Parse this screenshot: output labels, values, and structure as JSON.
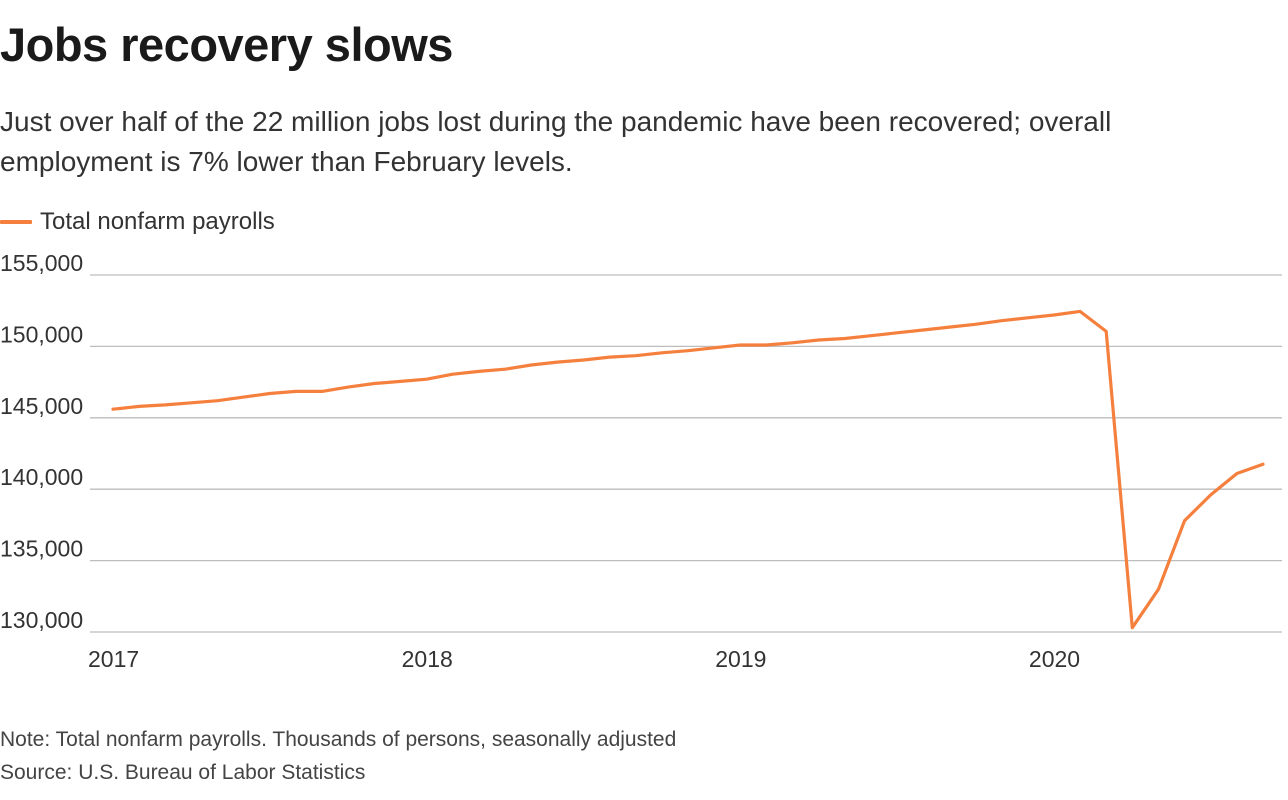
{
  "header": {
    "title": "Jobs recovery slows",
    "subtitle": "Just over half of the 22 million jobs lost during the pandemic have been recovered; overall employment is 7% lower than February levels."
  },
  "legend": {
    "label": "Total nonfarm payrolls",
    "color": "#f5803e"
  },
  "footer": {
    "note": "Note: Total nonfarm payrolls. Thousands of persons, seasonally adjusted",
    "source": "Source: U.S. Bureau of Labor Statistics"
  },
  "colors": {
    "line": "#f5803e",
    "grid": "#bdbdbd",
    "axis_text": "#333333"
  },
  "chart_data": {
    "type": "line",
    "title": "Jobs recovery slows",
    "xlabel": "",
    "ylabel": "",
    "ylim": [
      130000,
      155000
    ],
    "yticks": [
      130000,
      135000,
      140000,
      145000,
      150000,
      155000
    ],
    "ytick_labels": [
      "130,000",
      "135,000",
      "140,000",
      "145,000",
      "150,000",
      "155,000"
    ],
    "xticks": [
      {
        "x": "2017-01",
        "label": "2017"
      },
      {
        "x": "2018-01",
        "label": "2018"
      },
      {
        "x": "2019-01",
        "label": "2019"
      },
      {
        "x": "2020-01",
        "label": "2020"
      }
    ],
    "grid": true,
    "legend_position": "top-left",
    "series": [
      {
        "name": "Total nonfarm payrolls",
        "color": "#f5803e",
        "x": [
          "2017-01",
          "2017-02",
          "2017-03",
          "2017-04",
          "2017-05",
          "2017-06",
          "2017-07",
          "2017-08",
          "2017-09",
          "2017-10",
          "2017-11",
          "2017-12",
          "2018-01",
          "2018-02",
          "2018-03",
          "2018-04",
          "2018-05",
          "2018-06",
          "2018-07",
          "2018-08",
          "2018-09",
          "2018-10",
          "2018-11",
          "2018-12",
          "2019-01",
          "2019-02",
          "2019-03",
          "2019-04",
          "2019-05",
          "2019-06",
          "2019-07",
          "2019-08",
          "2019-09",
          "2019-10",
          "2019-11",
          "2019-12",
          "2020-01",
          "2020-02",
          "2020-03",
          "2020-04",
          "2020-05",
          "2020-06",
          "2020-07",
          "2020-08",
          "2020-09"
        ],
        "values": [
          145600,
          145800,
          145900,
          146050,
          146200,
          146450,
          146700,
          146850,
          146850,
          147150,
          147400,
          147550,
          147700,
          148050,
          148250,
          148400,
          148700,
          148900,
          149050,
          149250,
          149350,
          149550,
          149700,
          149900,
          150100,
          150100,
          150250,
          150450,
          150550,
          150750,
          150950,
          151150,
          151350,
          151550,
          151800,
          152000,
          152200,
          152450,
          151050,
          130300,
          133000,
          137800,
          139600,
          141100,
          141750
        ]
      }
    ]
  }
}
